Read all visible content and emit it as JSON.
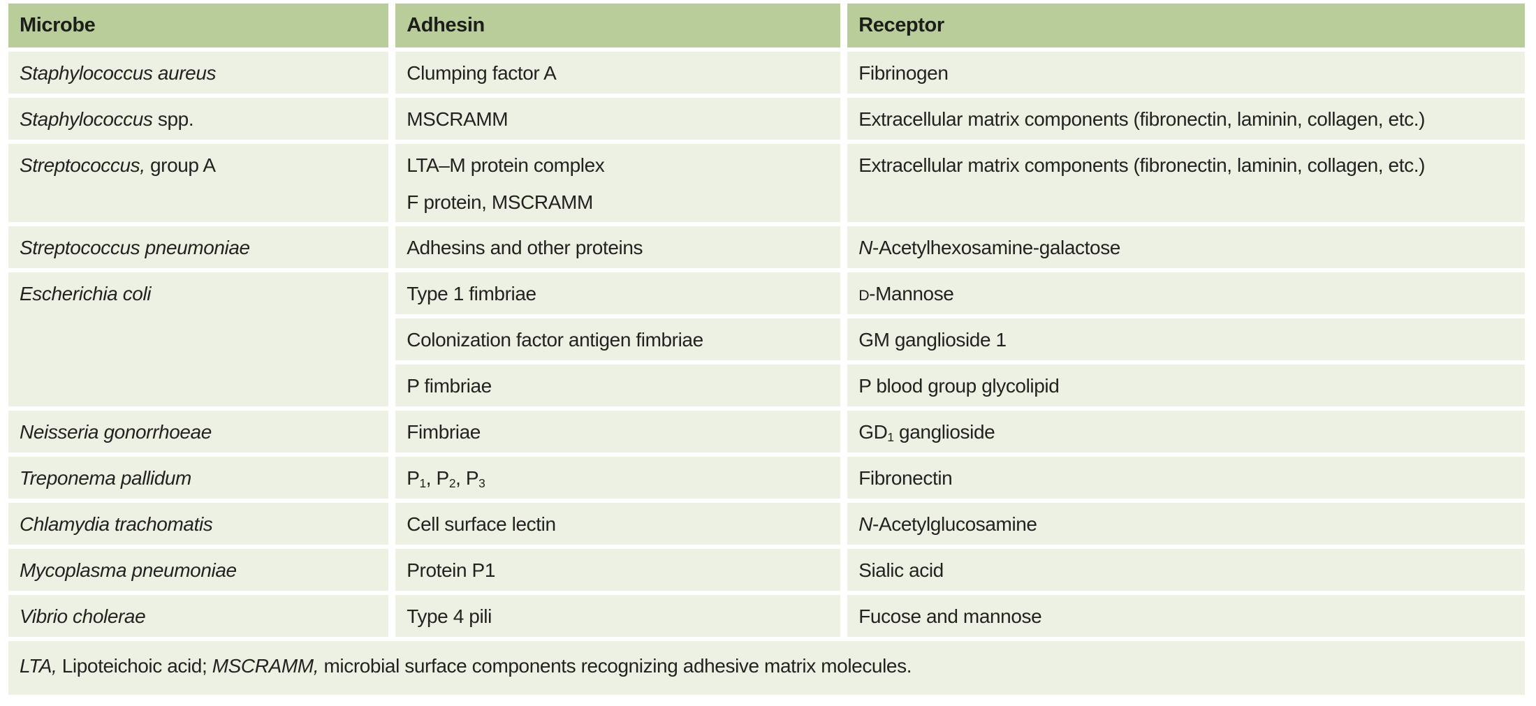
{
  "colors": {
    "header_bg": "#b9cd9a",
    "row_bg": "#edf1e3",
    "text": "#232220",
    "header_text": "#1d1d1a",
    "gap": "#ffffff"
  },
  "table": {
    "columns": [
      "Microbe",
      "Adhesin",
      "Receptor"
    ],
    "rows": [
      {
        "microbe": [
          {
            "text": "Staphylococcus aureus",
            "italic": true
          }
        ],
        "adhesin": [
          {
            "text": "Clumping factor A"
          }
        ],
        "receptor": [
          {
            "text": "Fibrinogen"
          }
        ]
      },
      {
        "microbe": [
          {
            "text": "Staphylococcus",
            "italic": true
          },
          {
            "text": " spp."
          }
        ],
        "adhesin": [
          {
            "text": "MSCRAMM"
          }
        ],
        "receptor": [
          {
            "text": "Extracellular matrix components (fibronectin, laminin, collagen, etc.)"
          }
        ]
      },
      {
        "microbe": [
          {
            "text": "Streptococcus,",
            "italic": true
          },
          {
            "text": " group A"
          }
        ],
        "adhesin": [
          {
            "text": "LTA–M protein complex"
          },
          {
            "br": true
          },
          {
            "text": "F protein, MSCRAMM"
          }
        ],
        "receptor": [
          {
            "text": "Extracellular matrix components (fibronectin, laminin, collagen, etc.)"
          }
        ]
      },
      {
        "microbe": [
          {
            "text": "Streptococcus pneumoniae",
            "italic": true
          }
        ],
        "adhesin": [
          {
            "text": "Adhesins and other proteins"
          }
        ],
        "receptor": [
          {
            "text": "N",
            "italic": true
          },
          {
            "text": "-Acetylhexosamine-galactose"
          }
        ]
      },
      {
        "microbe": [
          {
            "text": "Escherichia coli",
            "italic": true
          }
        ],
        "adhesin": [
          {
            "text": "Type 1 fimbriae"
          }
        ],
        "receptor": [
          {
            "text": "D",
            "smallcap": true
          },
          {
            "text": "-Mannose"
          }
        ]
      },
      {
        "microbe": null,
        "adhesin": [
          {
            "text": "Colonization factor antigen fimbriae"
          }
        ],
        "receptor": [
          {
            "text": "GM ganglioside 1"
          }
        ]
      },
      {
        "microbe": null,
        "adhesin": [
          {
            "text": "P fimbriae"
          }
        ],
        "receptor": [
          {
            "text": "P blood group glycolipid"
          }
        ]
      },
      {
        "microbe": [
          {
            "text": "Neisseria gonorrhoeae",
            "italic": true
          }
        ],
        "adhesin": [
          {
            "text": "Fimbriae"
          }
        ],
        "receptor": [
          {
            "text": "GD"
          },
          {
            "text": "1",
            "sub": true
          },
          {
            "text": " ganglioside"
          }
        ]
      },
      {
        "microbe": [
          {
            "text": "Treponema pallidum",
            "italic": true
          }
        ],
        "adhesin": [
          {
            "text": "P"
          },
          {
            "text": "1",
            "sub": true
          },
          {
            "text": ", P"
          },
          {
            "text": "2",
            "sub": true
          },
          {
            "text": ", P"
          },
          {
            "text": "3",
            "sub": true
          }
        ],
        "receptor": [
          {
            "text": "Fibronectin"
          }
        ]
      },
      {
        "microbe": [
          {
            "text": "Chlamydia trachomatis",
            "italic": true
          }
        ],
        "adhesin": [
          {
            "text": "Cell surface lectin"
          }
        ],
        "receptor": [
          {
            "text": "N",
            "italic": true
          },
          {
            "text": "-Acetylglucosamine"
          }
        ]
      },
      {
        "microbe": [
          {
            "text": "Mycoplasma pneumoniae",
            "italic": true
          }
        ],
        "adhesin": [
          {
            "text": "Protein P1"
          }
        ],
        "receptor": [
          {
            "text": "Sialic acid"
          }
        ]
      },
      {
        "microbe": [
          {
            "text": "Vibrio cholerae",
            "italic": true
          }
        ],
        "adhesin": [
          {
            "text": "Type 4 pili"
          }
        ],
        "receptor": [
          {
            "text": "Fucose and mannose"
          }
        ]
      }
    ],
    "footnote": [
      {
        "text": "LTA,",
        "italic": true
      },
      {
        "text": " Lipoteichoic acid; "
      },
      {
        "text": "MSCRAMM,",
        "italic": true
      },
      {
        "text": " microbial surface components recognizing adhesive matrix molecules."
      }
    ]
  }
}
